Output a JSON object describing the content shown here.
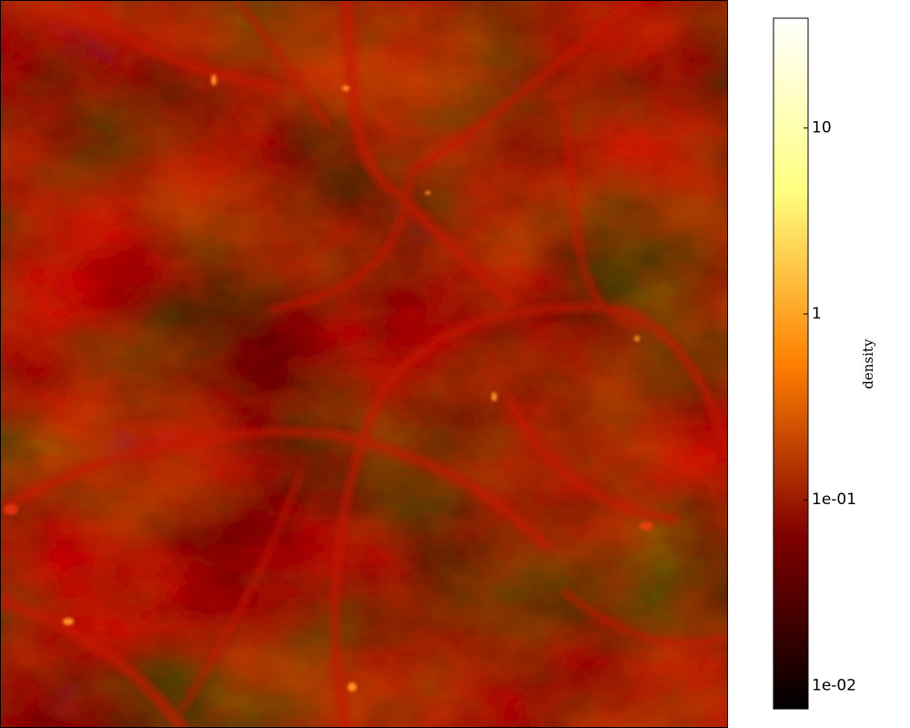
{
  "chart_data": {
    "type": "image",
    "colorbar": {
      "label": "density",
      "scale": "log",
      "colormap": "afmhot",
      "clim": [
        0.0075,
        39
      ],
      "ticks": [
        {
          "value": 0.01,
          "label": "1e-02"
        },
        {
          "value": 0.1,
          "label": "1e-01"
        },
        1,
        10
      ]
    }
  }
}
